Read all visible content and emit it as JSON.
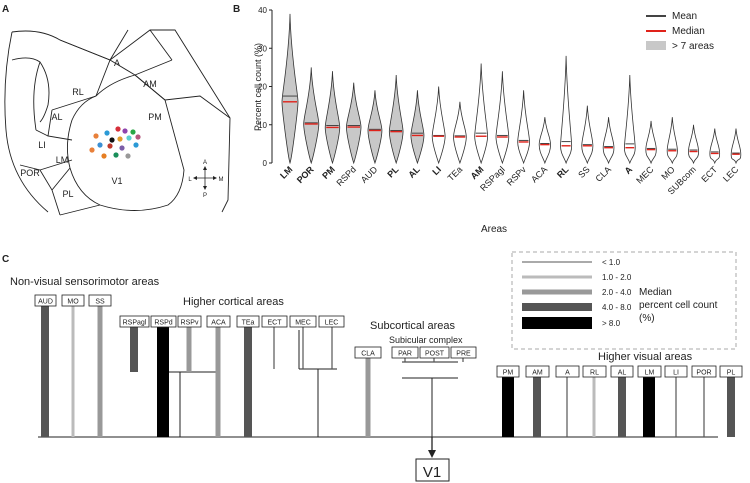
{
  "figure": {
    "panel_a": {
      "label": "A",
      "areas": [
        "RL",
        "A",
        "AM",
        "AL",
        "PM",
        "LI",
        "LM",
        "POR",
        "PL",
        "V1"
      ],
      "compass": {
        "up": "A",
        "down": "P",
        "left": "L",
        "right": "M"
      },
      "dot_colors": [
        "#e8803a",
        "#2b9ad6",
        "#d62f3a",
        "#8e44ad",
        "#28a745",
        "#111111",
        "#e09c2a",
        "#5ad0d0",
        "#b5577e",
        "#3b8fd4",
        "#c0392b",
        "#7b5ea7",
        "#e67e22",
        "#1a8f5a",
        "#999999"
      ]
    },
    "panel_b": {
      "label": "B",
      "legend": [
        {
          "label": "Mean",
          "color": "#444444"
        },
        {
          "label": "Median",
          "color": "#e0221a"
        },
        {
          "label": "> 7 areas",
          "color": "#c8c8c8"
        }
      ]
    },
    "panel_c": {
      "label": "C",
      "target": "V1",
      "groups": {
        "nonvisual": "Non-visual sensorimotor areas",
        "higher_cortical": "Higher cortical areas",
        "subcortical": "Subcortical areas",
        "subicular": "Subicular complex",
        "higher_visual": "Higher visual areas"
      },
      "legend": {
        "title_lines": [
          "Median",
          "percent cell count",
          "(%)"
        ],
        "items": [
          {
            "label": "< 1.0",
            "color": "#555555"
          },
          {
            "label": "1.0 - 2.0",
            "color": "#bbbbbb"
          },
          {
            "label": "2.0 - 4.0",
            "color": "#999999"
          },
          {
            "label": "4.0 - 8.0",
            "color": "#555555"
          },
          {
            "label": "> 8.0",
            "color": "#000000"
          }
        ]
      },
      "boxes": {
        "AUD": "AUD",
        "MO": "MO",
        "SS": "SS",
        "RSPagl": "RSPagl",
        "RSPd": "RSPd",
        "RSPv": "RSPv",
        "ACA": "ACA",
        "TEa": "TEa",
        "ECT": "ECT",
        "MEC": "MEC",
        "LEC": "LEC",
        "CLA": "CLA",
        "PAR": "PAR",
        "POST": "POST",
        "PRE": "PRE",
        "PM": "PM",
        "AM": "AM",
        "A": "A",
        "RL": "RL",
        "AL": "AL",
        "LM": "LM",
        "LI": "LI",
        "POR": "POR",
        "PL": "PL"
      }
    }
  },
  "chart_data": {
    "type": "violin",
    "title": "",
    "ylabel": "Percent cell count (%)",
    "xlabel": "Areas",
    "ylim": [
      0,
      40
    ],
    "yticks": [
      0,
      10,
      20,
      30,
      40
    ],
    "categories": [
      "LM",
      "POR",
      "PM",
      "RSPd",
      "AUD",
      "PL",
      "AL",
      "LI",
      "TEa",
      "AM",
      "RSPagl",
      "RSPv",
      "ACA",
      "RL",
      "SS",
      "CLA",
      "A",
      "MEC",
      "MO",
      "SUBcom",
      "ECT",
      "LEC"
    ],
    "bold_categories": [
      "LM",
      "POR",
      "PM",
      "PL",
      "AL",
      "LI",
      "AM",
      "RL",
      "A"
    ],
    "shaded_categories": [
      "LM",
      "POR",
      "PM",
      "RSPd",
      "AUD",
      "PL",
      "AL"
    ],
    "median": [
      16,
      10.2,
      9.3,
      9.4,
      8.5,
      8.2,
      7.2,
      7.0,
      6.8,
      7.0,
      6.8,
      5.5,
      4.8,
      4.5,
      4.5,
      4.0,
      4.0,
      3.5,
      3.2,
      3.0,
      2.5,
      2.3
    ],
    "mean": [
      17.5,
      10.5,
      9.8,
      9.8,
      8.8,
      8.5,
      7.8,
      7.2,
      7.1,
      7.8,
      7.2,
      5.9,
      5.1,
      5.6,
      4.8,
      4.3,
      5.0,
      3.8,
      3.6,
      3.4,
      2.9,
      2.6
    ],
    "max": [
      39,
      25,
      24,
      21,
      19,
      23,
      19,
      20,
      16,
      26,
      24,
      19,
      12,
      28,
      15,
      12,
      23,
      11,
      12,
      10,
      9,
      9
    ],
    "min": [
      0,
      0,
      0,
      0,
      0,
      0,
      0,
      0,
      0,
      0,
      0,
      0,
      0,
      0,
      0,
      0,
      0,
      0,
      0,
      0,
      0,
      0
    ]
  }
}
